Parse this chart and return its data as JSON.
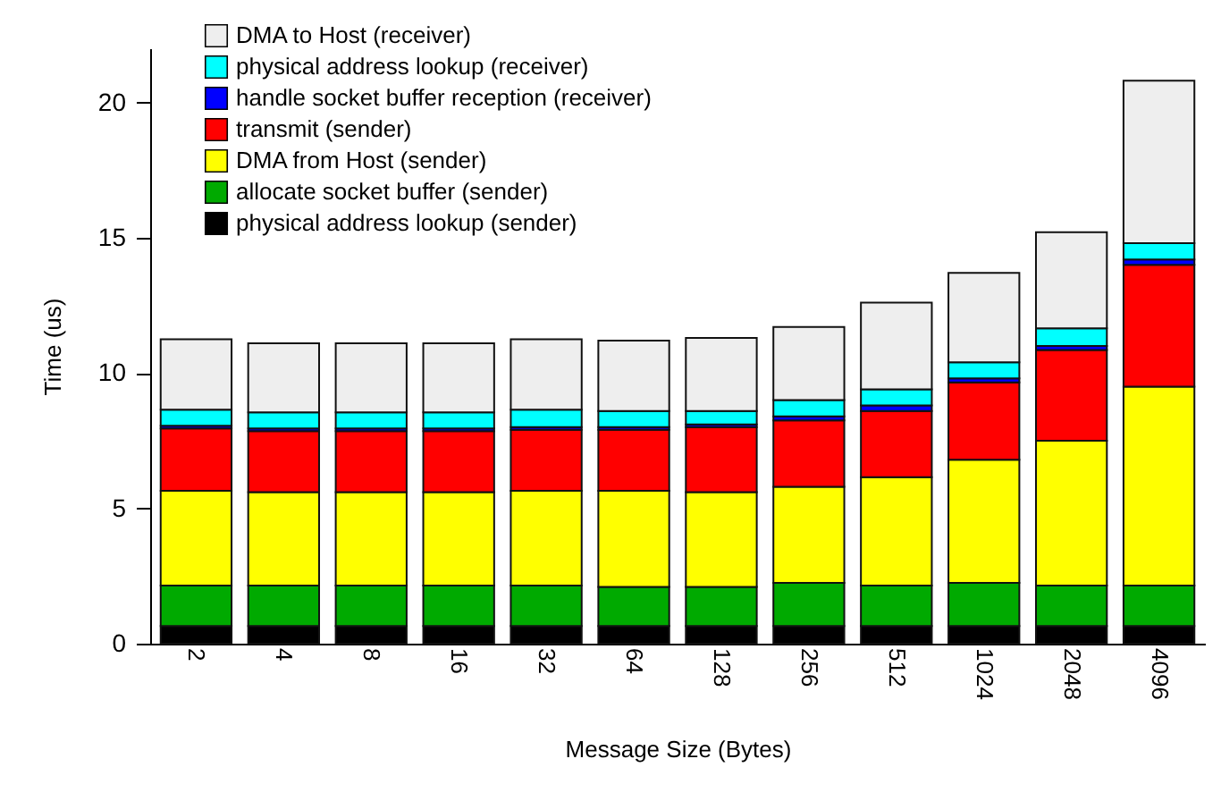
{
  "chart_data": {
    "type": "bar",
    "stacked": true,
    "xlabel": "Message Size (Bytes)",
    "ylabel": "Time (us)",
    "categories": [
      "2",
      "4",
      "8",
      "16",
      "32",
      "64",
      "128",
      "256",
      "512",
      "1024",
      "2048",
      "4096"
    ],
    "ylim": [
      0,
      22
    ],
    "yticks": [
      0,
      5,
      10,
      15,
      20
    ],
    "grid": false,
    "legend": "top left",
    "series": [
      {
        "name": "physical address lookup (sender)",
        "color": "#000000",
        "values": [
          0.65,
          0.65,
          0.65,
          0.65,
          0.65,
          0.65,
          0.65,
          0.65,
          0.65,
          0.65,
          0.65,
          0.65
        ]
      },
      {
        "name": "allocate socket buffer (sender)",
        "color": "#00aa00",
        "values": [
          1.5,
          1.5,
          1.5,
          1.5,
          1.5,
          1.45,
          1.45,
          1.6,
          1.5,
          1.6,
          1.5,
          1.5
        ]
      },
      {
        "name": "DMA from Host (sender)",
        "color": "#ffff00",
        "values": [
          3.5,
          3.45,
          3.45,
          3.45,
          3.5,
          3.55,
          3.5,
          3.55,
          4.0,
          4.55,
          5.35,
          7.35
        ]
      },
      {
        "name": "transmit (sender)",
        "color": "#ff0000",
        "values": [
          2.3,
          2.25,
          2.25,
          2.25,
          2.25,
          2.25,
          2.4,
          2.45,
          2.45,
          2.85,
          3.35,
          4.5
        ]
      },
      {
        "name": "handle socket buffer reception (receiver)",
        "color": "#0000ff",
        "values": [
          0.1,
          0.1,
          0.1,
          0.1,
          0.1,
          0.1,
          0.1,
          0.15,
          0.2,
          0.15,
          0.15,
          0.2
        ]
      },
      {
        "name": "physical address lookup (receiver)",
        "color": "#00ffff",
        "values": [
          0.6,
          0.6,
          0.6,
          0.6,
          0.65,
          0.6,
          0.5,
          0.6,
          0.6,
          0.6,
          0.65,
          0.6
        ]
      },
      {
        "name": "DMA to Host (receiver)",
        "color": "#eeeeee",
        "values": [
          2.6,
          2.55,
          2.55,
          2.55,
          2.6,
          2.6,
          2.7,
          2.7,
          3.2,
          3.3,
          3.55,
          6.0
        ]
      }
    ]
  }
}
